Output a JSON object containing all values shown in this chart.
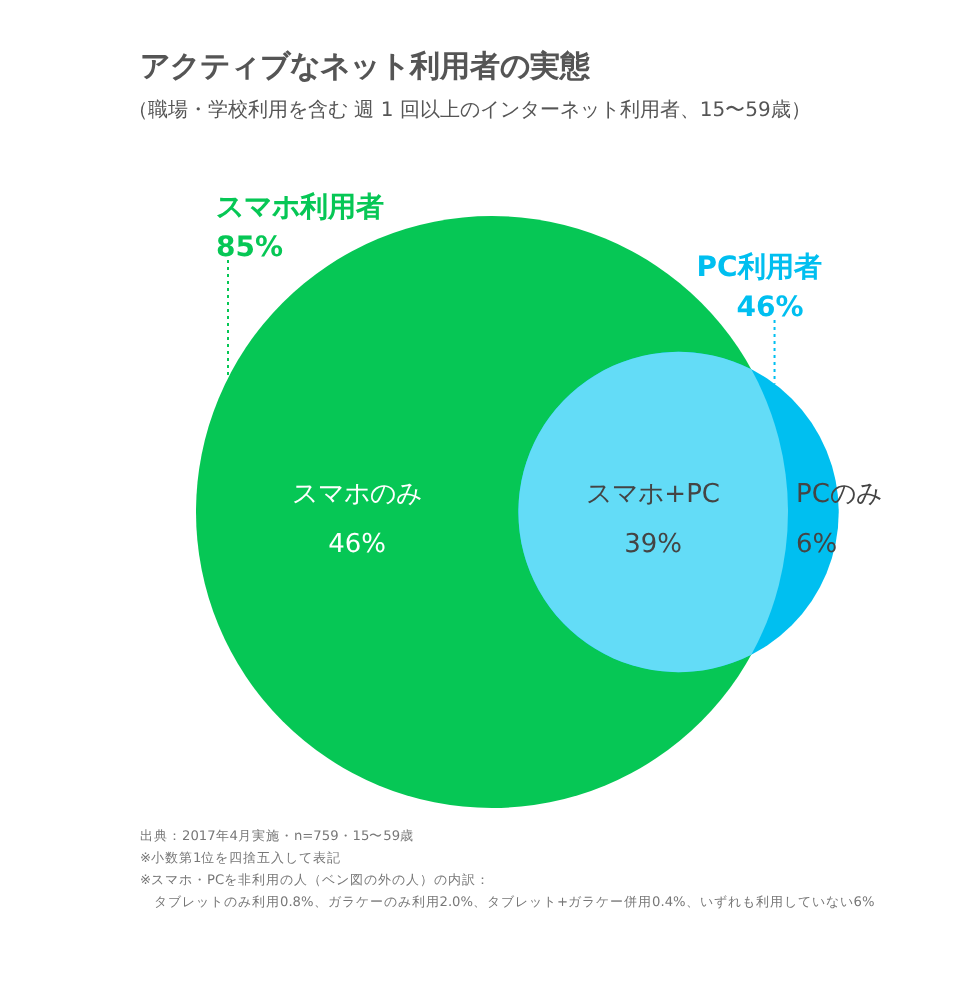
{
  "chart_data": {
    "type": "other",
    "title": "アクティブなネット利用者の実態",
    "subtitle": "（職場・学校利用を含む 週 1 回以上のインターネット利用者、15〜59歳）",
    "categories": [
      "スマホ利用者",
      "PC利用者",
      "スマホのみ",
      "スマホ+PC",
      "PCのみ"
    ],
    "values": [
      85,
      46,
      46,
      39,
      6
    ],
    "value_labels": [
      "85%",
      "46%",
      "46%",
      "39%",
      "6%"
    ],
    "colors": [
      "#06c755",
      "#00bff0",
      "#06c755",
      "#63dcf7",
      "#00bff0"
    ],
    "annotations": [
      "出典：2017年4月実施・n=759・15〜59歳",
      "※小数第1位を四捨五入して表記",
      "※スマホ・PCを非利用の人（ベン図の外の人）の内訳：",
      "　タブレットのみ利用0.8%、ガラケーのみ利用2.0%、タブレット+ガラケー併用0.4%、いずれも利用していない6%"
    ]
  }
}
